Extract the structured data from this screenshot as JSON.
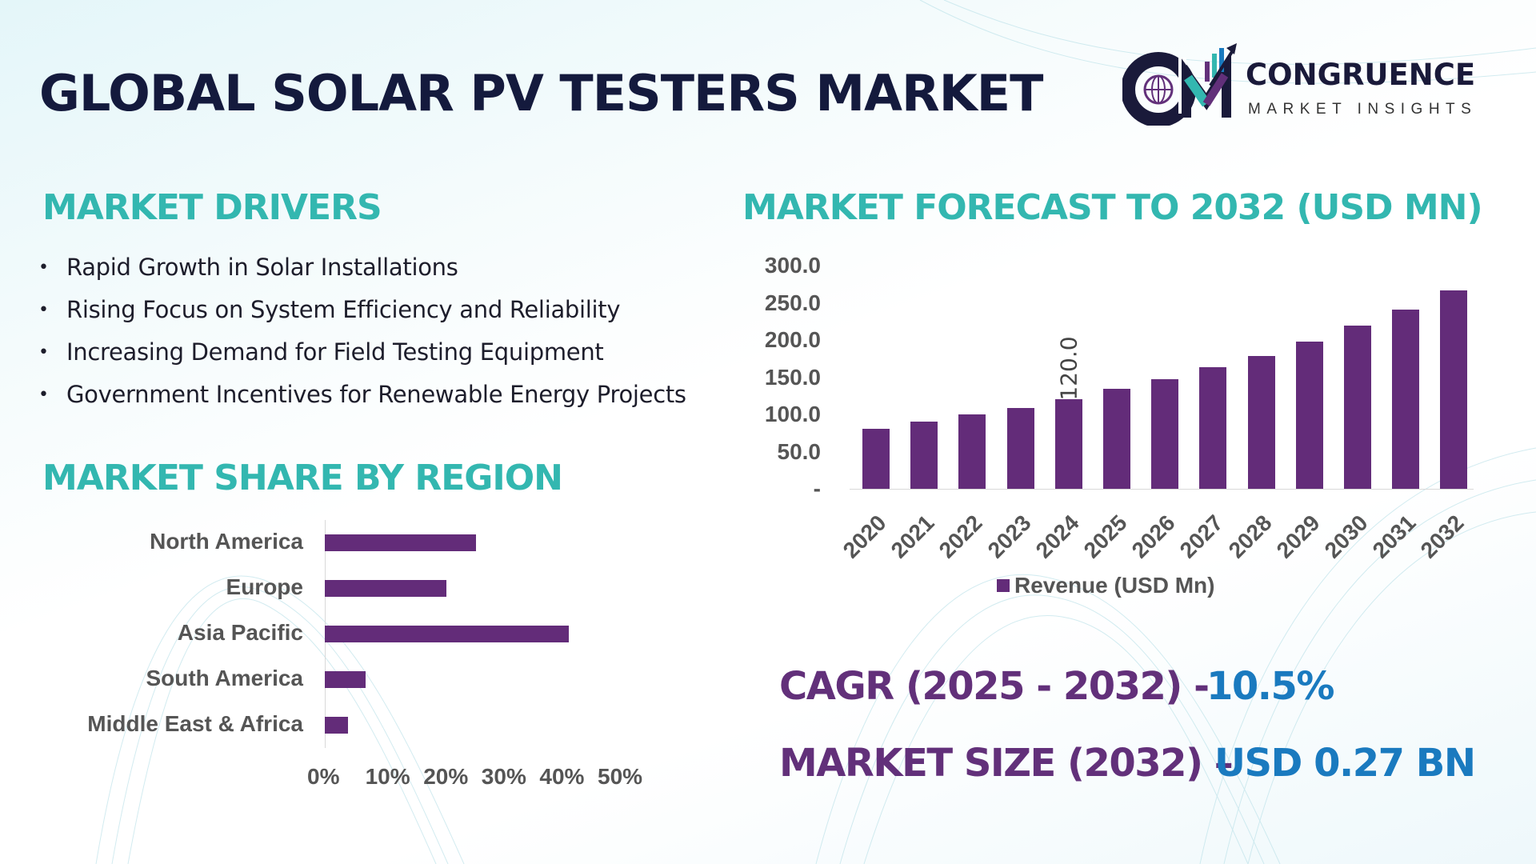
{
  "header": {
    "title": "GLOBAL SOLAR PV TESTERS MARKET"
  },
  "logo": {
    "name": "CONGRUENCE",
    "tagline": "MARKET INSIGHTS"
  },
  "drivers": {
    "heading": "MARKET DRIVERS",
    "items": [
      "Rapid Growth in Solar Installations",
      "Rising Focus on System Efficiency and Reliability",
      "Increasing Demand for Field Testing Equipment",
      "Government Incentives for Renewable Energy Projects"
    ]
  },
  "region_heading": "MARKET SHARE BY REGION",
  "forecast_heading": "MARKET FORECAST TO 2032 (USD MN)",
  "kpis": {
    "cagr_label": "CAGR (2025 - 2032) -",
    "cagr_value": "10.5%",
    "size_label": "MARKET SIZE (2032) –",
    "size_value": "USD 0.27 BN"
  },
  "colors": {
    "bar": "#632c79",
    "heading": "#33b7b0",
    "kpi_label": "#62307a",
    "kpi_value": "#1a7abf",
    "title": "#141a3d"
  },
  "chart_data": [
    {
      "type": "bar",
      "orientation": "vertical",
      "categories": [
        "2020",
        "2021",
        "2022",
        "2023",
        "2024",
        "2025",
        "2026",
        "2027",
        "2028",
        "2029",
        "2030",
        "2031",
        "2032"
      ],
      "series": [
        {
          "name": "Revenue (USD Mn)",
          "values": [
            81,
            90,
            100,
            109,
            120,
            134,
            147,
            163,
            179,
            198,
            219,
            241,
            267
          ]
        }
      ],
      "data_labels": [
        {
          "category": "2024",
          "text": "120.0"
        }
      ],
      "yticks": [
        "-",
        "50.0",
        "100.0",
        "150.0",
        "200.0",
        "250.0",
        "300.0"
      ],
      "ylim": [
        0,
        300
      ],
      "grid": false,
      "legend": "bottom"
    },
    {
      "type": "bar",
      "orientation": "horizontal",
      "categories": [
        "North America",
        "Europe",
        "Asia Pacific",
        "South America",
        "Middle East & Africa"
      ],
      "values": [
        26,
        21,
        42,
        7,
        4
      ],
      "xticks": [
        "0%",
        "10%",
        "20%",
        "30%",
        "40%",
        "50%"
      ],
      "xlim": [
        0,
        50
      ],
      "grid": false
    }
  ]
}
